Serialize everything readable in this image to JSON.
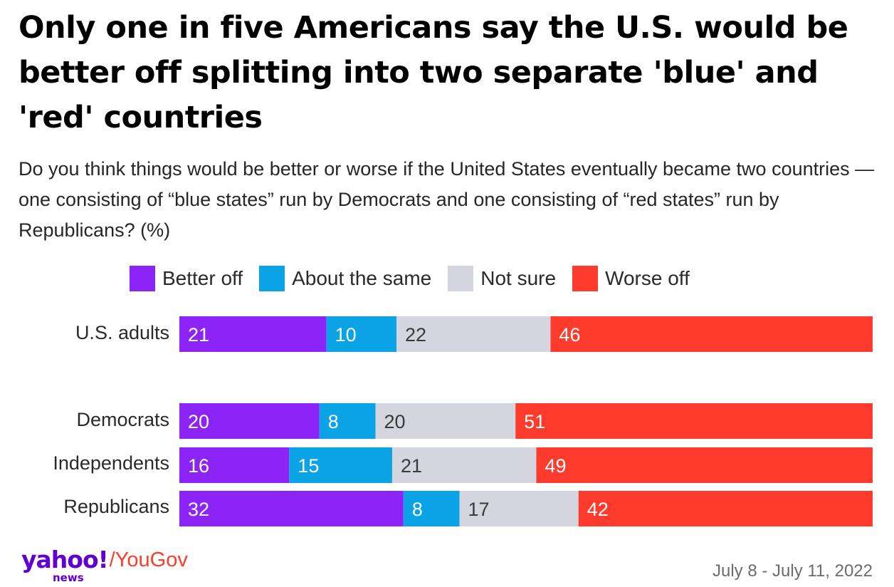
{
  "title": "Only one in five Americans say the U.S. would be better off splitting into two separate 'blue' and 'red' countries",
  "subtitle": "Do you think things would be better or worse if the United States eventually became two countries — one consisting of “blue states” run by Democrats and one consisting of “red states” run by Republicans? (%)",
  "legend": [
    {
      "label": "Better off",
      "color": "#8c24f7"
    },
    {
      "label": "About the same",
      "color": "#0aa3e6"
    },
    {
      "label": "Not sure",
      "color": "#d4d5de"
    },
    {
      "label": "Worse off",
      "color": "#ff3b2e"
    }
  ],
  "chart_data": {
    "type": "bar",
    "orientation": "horizontal",
    "stacked": true,
    "title": "Only one in five Americans say the U.S. would be better off splitting into two separate 'blue' and 'red' countries",
    "unit": "%",
    "categories": [
      "U.S. adults",
      "Democrats",
      "Independents",
      "Republicans"
    ],
    "series": [
      {
        "name": "Better off",
        "values": [
          21,
          20,
          16,
          32
        ]
      },
      {
        "name": "About the same",
        "values": [
          10,
          8,
          15,
          8
        ]
      },
      {
        "name": "Not sure",
        "values": [
          22,
          20,
          21,
          17
        ]
      },
      {
        "name": "Worse off",
        "values": [
          46,
          51,
          49,
          42
        ]
      }
    ],
    "legend_position": "top"
  },
  "brand": {
    "yahoo": "yahoo!",
    "news": "news",
    "partner": "/YouGov"
  },
  "date": "July 8 - July 11, 2022"
}
